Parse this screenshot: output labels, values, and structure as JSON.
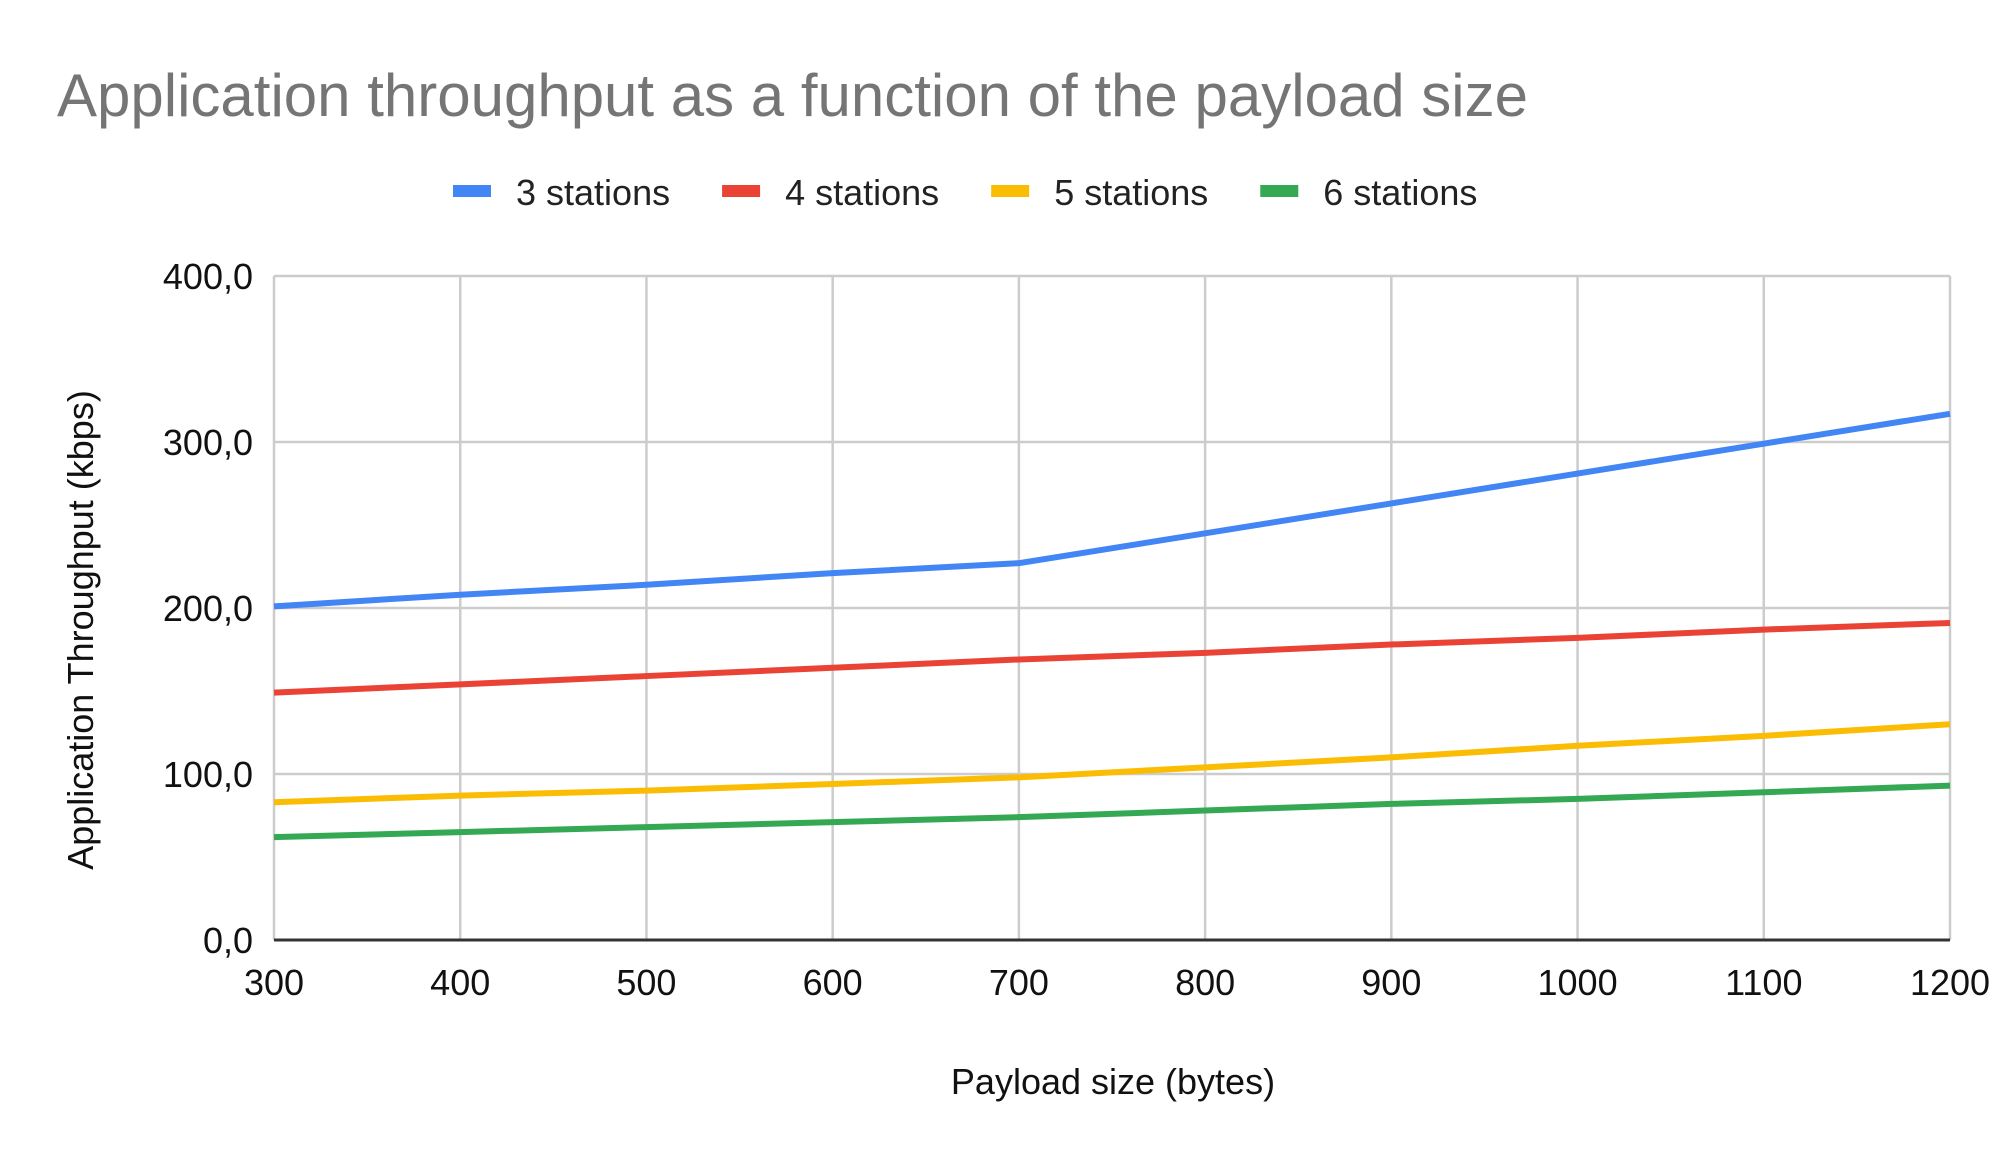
{
  "chart_data": {
    "type": "line",
    "title": "Application throughput as a function of the payload size",
    "xlabel": "Payload size (bytes)",
    "ylabel": "Application Throughput (kbps)",
    "x": [
      300,
      400,
      500,
      600,
      700,
      800,
      900,
      1000,
      1100,
      1200
    ],
    "x_tick_labels": [
      "300",
      "400",
      "500",
      "600",
      "700",
      "800",
      "900",
      "1000",
      "1100",
      "1200"
    ],
    "xlim": [
      300,
      1200
    ],
    "ylim": [
      0,
      400
    ],
    "y_ticks": [
      0,
      100,
      200,
      300,
      400
    ],
    "y_tick_labels": [
      "0,0",
      "100,0",
      "200,0",
      "300,0",
      "400,0"
    ],
    "grid": true,
    "legend_position": "top",
    "series": [
      {
        "name": "3 stations",
        "color": "#4285F4",
        "values": [
          201,
          208,
          214,
          221,
          227,
          245,
          263,
          281,
          299,
          317
        ]
      },
      {
        "name": "4 stations",
        "color": "#EA4335",
        "values": [
          149,
          154,
          159,
          164,
          169,
          173,
          178,
          182,
          187,
          191
        ]
      },
      {
        "name": "5 stations",
        "color": "#FBBC04",
        "values": [
          83,
          87,
          90,
          94,
          98,
          104,
          110,
          117,
          123,
          130
        ]
      },
      {
        "name": "6 stations",
        "color": "#34A853",
        "values": [
          62,
          65,
          68,
          71,
          74,
          78,
          82,
          85,
          89,
          93
        ]
      }
    ]
  }
}
